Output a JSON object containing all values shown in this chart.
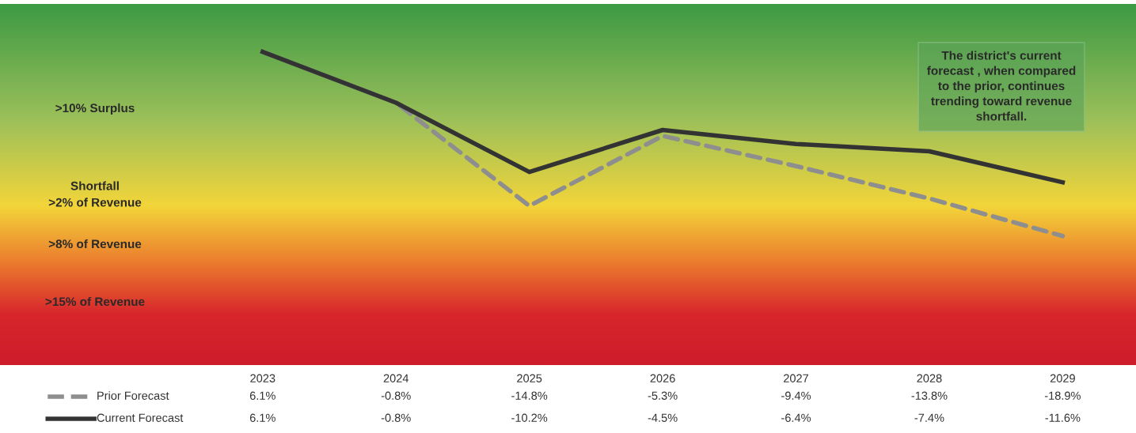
{
  "chart_data": {
    "type": "line",
    "categories": [
      "2023",
      "2024",
      "2025",
      "2026",
      "2027",
      "2028",
      "2029"
    ],
    "series": [
      {
        "name": "Prior Forecast",
        "color": "#8e8e8e",
        "line_style": "dashed",
        "values": [
          6.1,
          -0.8,
          -14.8,
          -5.3,
          -9.4,
          -13.8,
          -18.9
        ],
        "value_labels": [
          "6.1%",
          "-0.8%",
          "-14.8%",
          "-5.3%",
          "-9.4%",
          "-13.8%",
          "-18.9%"
        ]
      },
      {
        "name": "Current Forecast",
        "color": "#333333",
        "line_style": "solid",
        "values": [
          6.1,
          -0.8,
          -10.2,
          -4.5,
          -6.4,
          -7.4,
          -11.6
        ],
        "value_labels": [
          "6.1%",
          "-0.8%",
          "-10.2%",
          "-4.5%",
          "-6.4%",
          "-7.4%",
          "-11.6%"
        ]
      }
    ],
    "tick_labels": "x",
    "legend": "bottom",
    "annotations": [
      ">10% Surplus",
      "Shortfall\n>2% of Revenue",
      ">8% of Revenue",
      ">15% of Revenue",
      "The district's current\nforecast , when compared\nto the prior, continues\ntrending toward revenue\nshortfall."
    ]
  }
}
